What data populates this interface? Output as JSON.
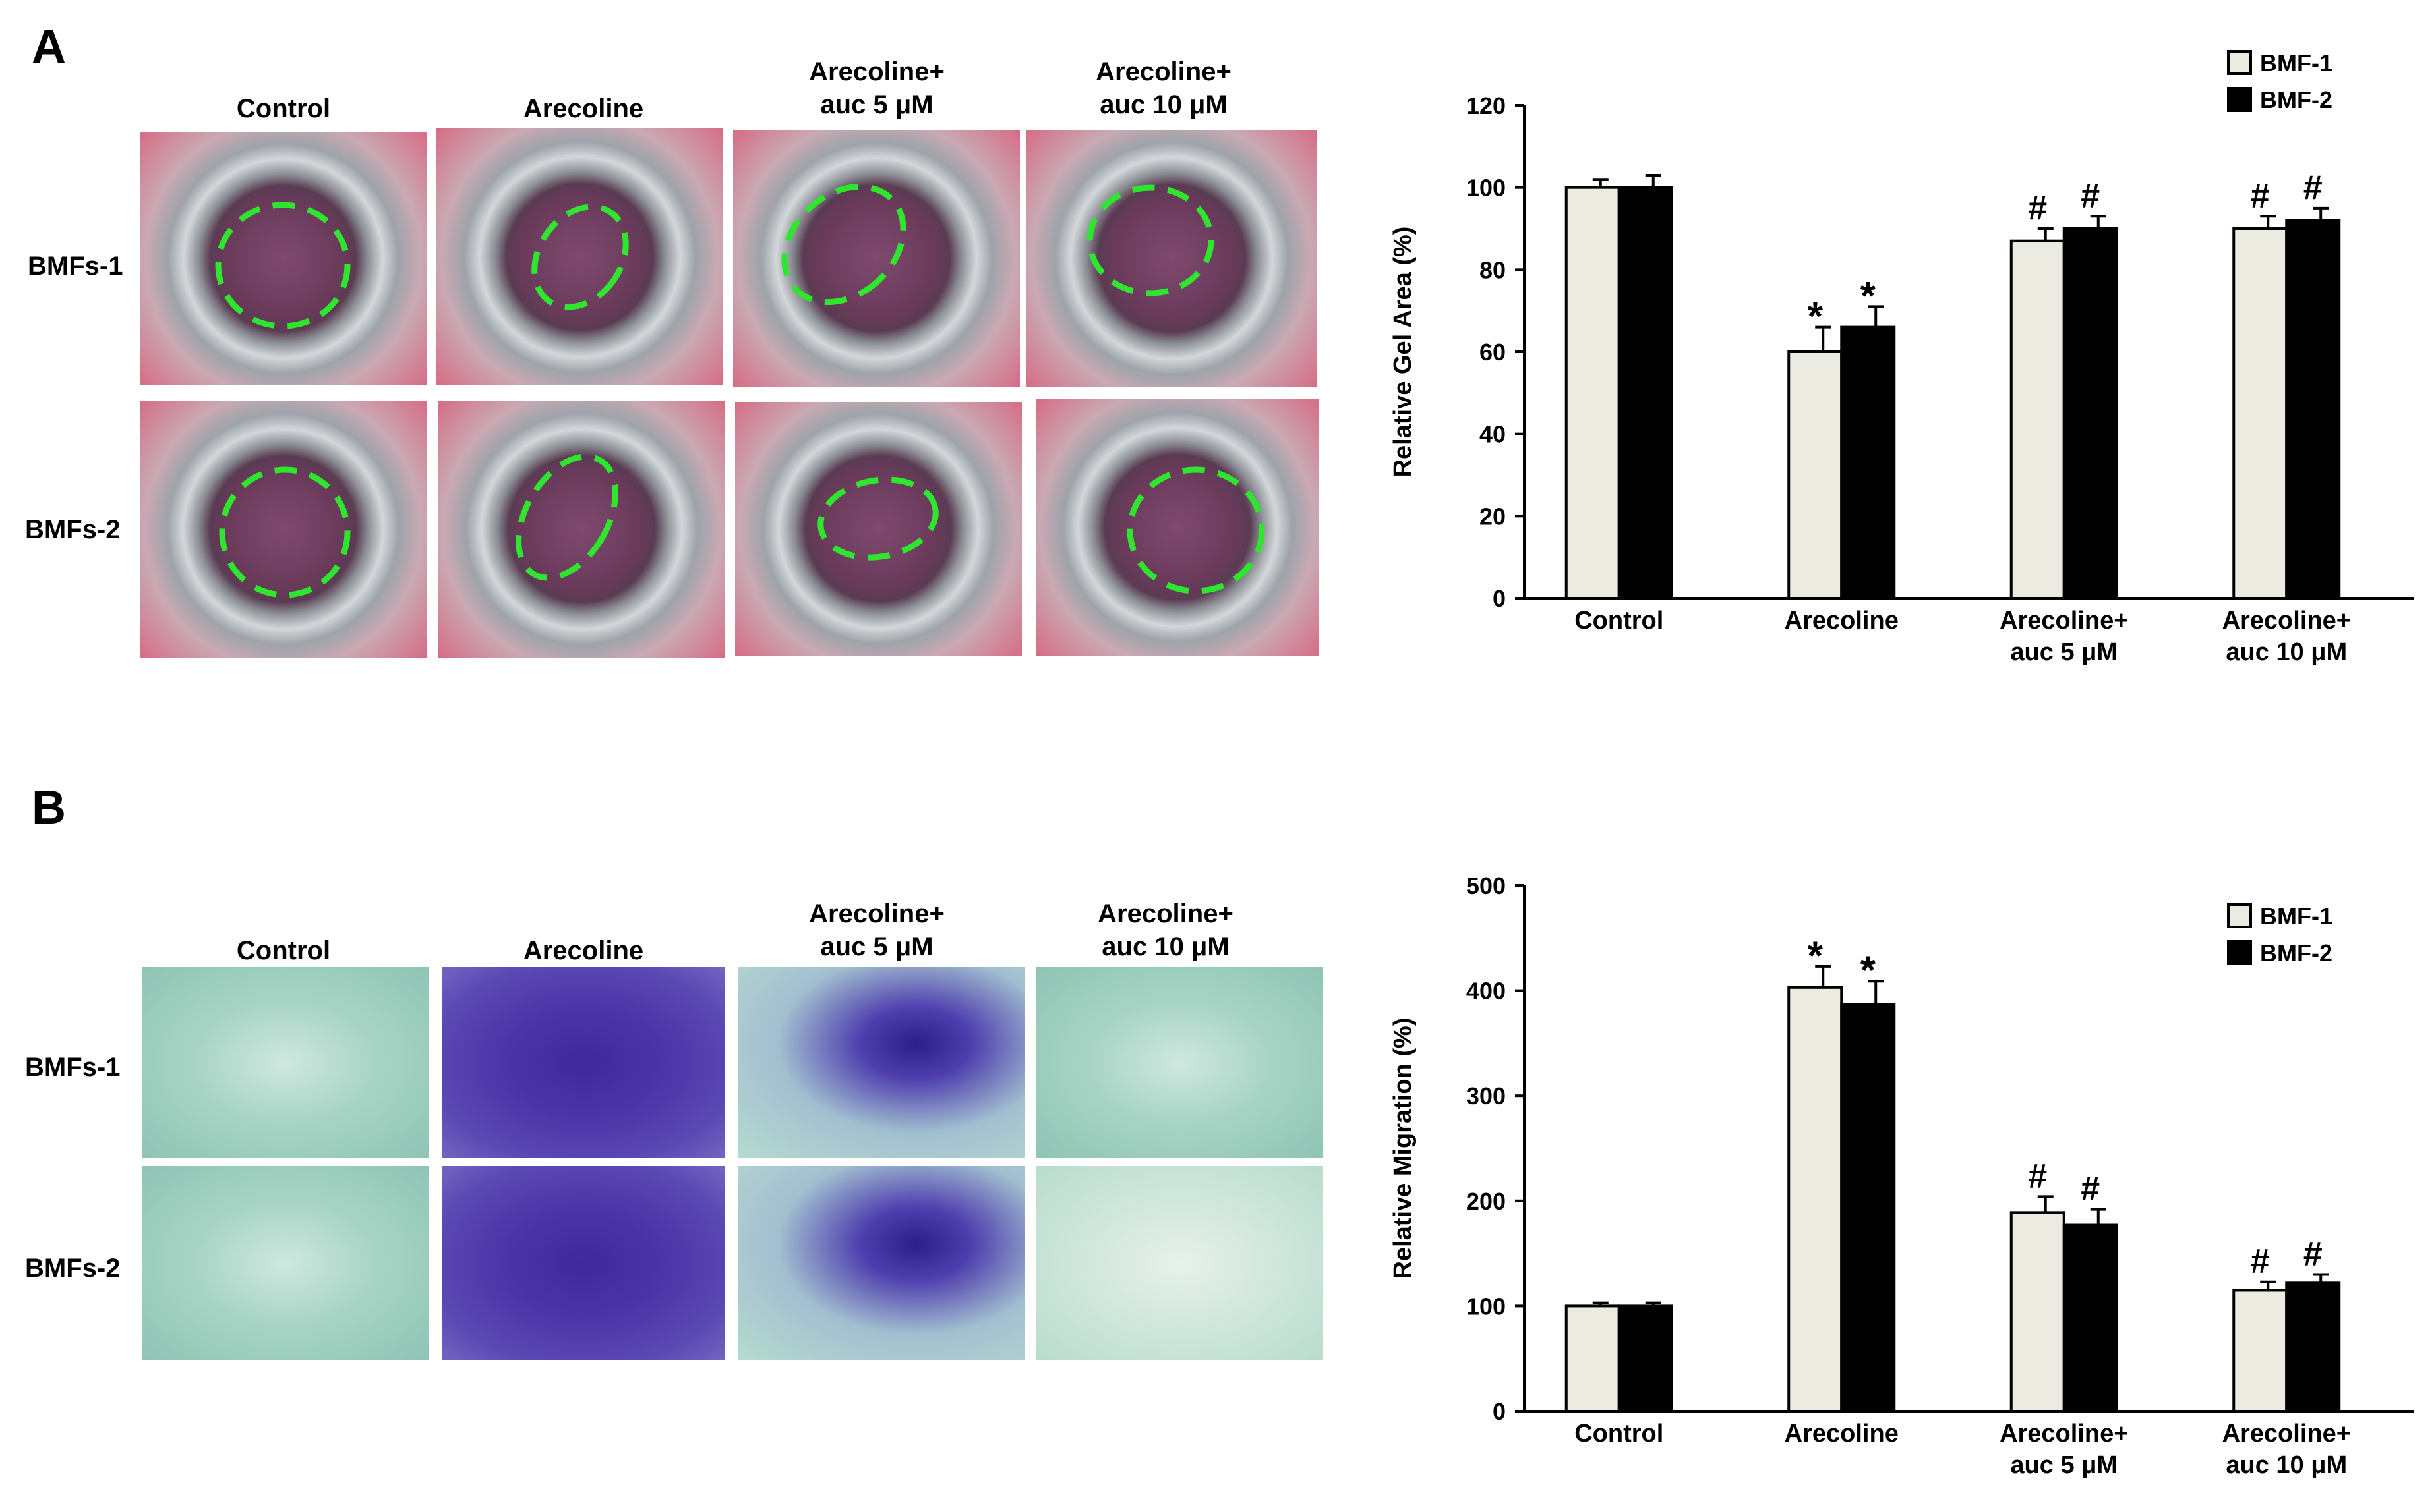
{
  "panels": [
    {
      "letter": "A",
      "columns": [
        "Control",
        "Arecoline",
        "Arecoline+\nauc 5 μM",
        "Arecoline+\nauc 10 μM"
      ],
      "rows": [
        "BMFs-1",
        "BMFs-2"
      ]
    },
    {
      "letter": "B",
      "columns": [
        "Control",
        "Arecoline",
        "Arecoline+\nauc 5 μM",
        "Arecoline+\nauc 10 μM"
      ],
      "rows": [
        "BMFs-1",
        "BMFs-2"
      ]
    }
  ],
  "chart_data": [
    {
      "type": "bar",
      "categories": [
        "Control",
        "Arecoline",
        "Arecoline+\nauc 5 μM",
        "Arecoline+\nauc 10 μM"
      ],
      "series": [
        {
          "name": "BMF-1",
          "color": "#ecebe1",
          "values": [
            100,
            60,
            87,
            90
          ],
          "errors": [
            2,
            6,
            3,
            3
          ],
          "marks": [
            "",
            "*",
            "#",
            "#"
          ]
        },
        {
          "name": "BMF-2",
          "color": "#000000",
          "values": [
            100,
            66,
            90,
            92
          ],
          "errors": [
            3,
            5,
            3,
            3
          ],
          "marks": [
            "",
            "*",
            "#",
            "#"
          ]
        }
      ],
      "ylabel": "Relative Gel Area (%)",
      "ylim": [
        0,
        120
      ],
      "yticks": [
        0,
        20,
        40,
        60,
        80,
        100,
        120
      ],
      "legend": "top-right",
      "grid": false
    },
    {
      "type": "bar",
      "categories": [
        "Control",
        "Arecoline",
        "Arecoline+\nauc 5 μM",
        "Arecoline+\nauc 10 μM"
      ],
      "series": [
        {
          "name": "BMF-1",
          "color": "#ecebe1",
          "values": [
            100,
            403,
            189,
            115
          ],
          "errors": [
            3,
            20,
            15,
            8
          ],
          "marks": [
            "",
            "*",
            "#",
            "#"
          ]
        },
        {
          "name": "BMF-2",
          "color": "#000000",
          "values": [
            100,
            387,
            177,
            122
          ],
          "errors": [
            3,
            22,
            15,
            8
          ],
          "marks": [
            "",
            "*",
            "#",
            "#"
          ]
        }
      ],
      "ylabel": "Relative Migration (%)",
      "ylim": [
        0,
        500
      ],
      "yticks": [
        0,
        100,
        200,
        300,
        400,
        500
      ],
      "legend": "top-right",
      "grid": false
    }
  ]
}
